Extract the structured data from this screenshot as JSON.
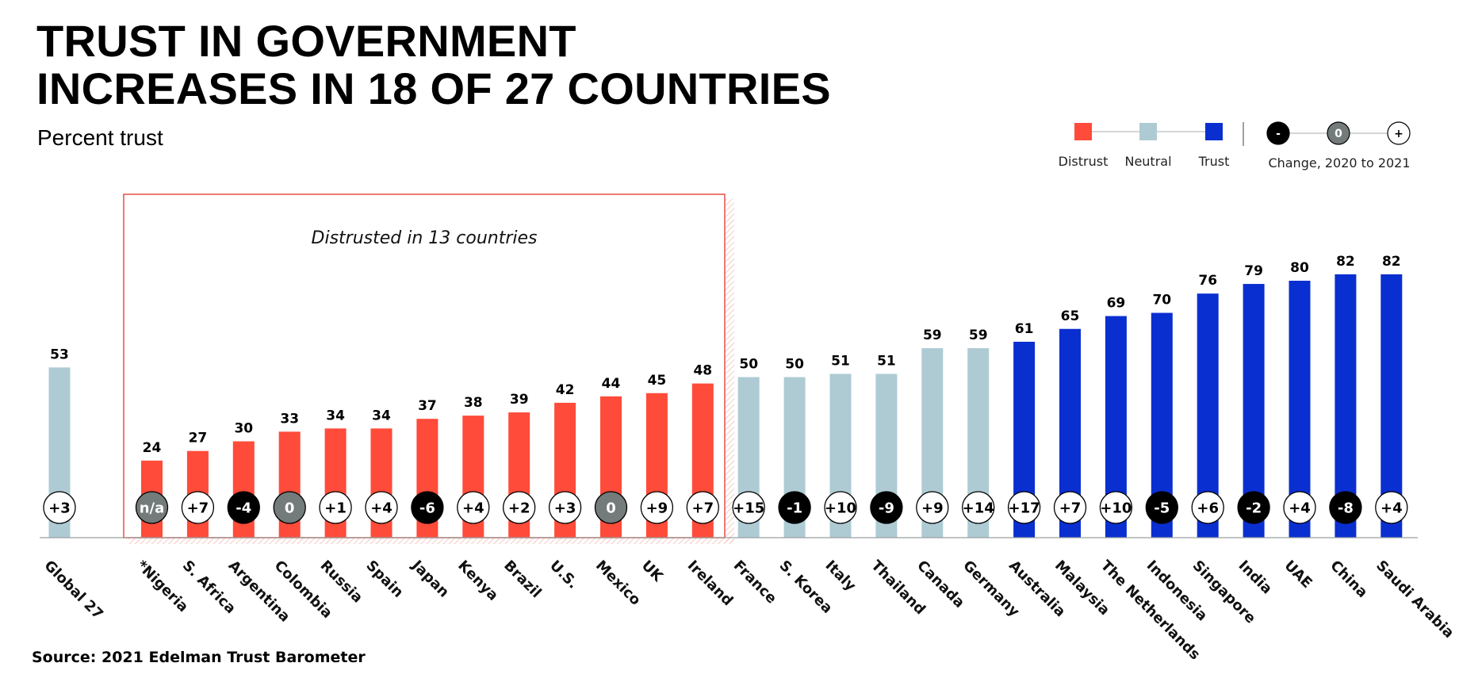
{
  "title_line1": "TRUST IN GOVERNMENT",
  "title_line2": "INCREASES IN 18 OF 27 COUNTRIES",
  "subtitle": "Percent trust",
  "source": "Source: 2021 Edelman Trust Barometer",
  "callout": "Distrusted in 13 countries",
  "legend": {
    "items": [
      {
        "label": "Distrust",
        "color": "#ff4b3a"
      },
      {
        "label": "Neutral",
        "color": "#aecbd4"
      },
      {
        "label": "Trust",
        "color": "#0a2fd0"
      }
    ],
    "change_label": "Change, 2020 to 2021",
    "change_symbols": [
      "-",
      "0",
      "+"
    ]
  },
  "colors": {
    "distrust": "#ff4b3a",
    "neutral": "#aecbd4",
    "trust": "#0a2fd0",
    "change_negative": "#000000",
    "change_zero": "#737b7b",
    "change_positive": "#ffffff",
    "callout_border": "#e85a50"
  },
  "chart_data": {
    "type": "bar",
    "ylim": [
      0,
      100
    ],
    "categories": [
      "Global 27",
      "*Nigeria",
      "S. Africa",
      "Argentina",
      "Colombia",
      "Russia",
      "Spain",
      "Japan",
      "Kenya",
      "Brazil",
      "U.S.",
      "Mexico",
      "UK",
      "Ireland",
      "France",
      "S. Korea",
      "Italy",
      "Thailand",
      "Canada",
      "Germany",
      "Australia",
      "Malaysia",
      "The Netherlands",
      "Indonesia",
      "Singapore",
      "India",
      "UAE",
      "China",
      "Saudi Arabia"
    ],
    "values": [
      53,
      24,
      27,
      30,
      33,
      34,
      34,
      37,
      38,
      39,
      42,
      44,
      45,
      48,
      50,
      50,
      51,
      51,
      59,
      59,
      61,
      65,
      69,
      70,
      76,
      79,
      80,
      82,
      82
    ],
    "bands": [
      "neutral",
      "distrust",
      "distrust",
      "distrust",
      "distrust",
      "distrust",
      "distrust",
      "distrust",
      "distrust",
      "distrust",
      "distrust",
      "distrust",
      "distrust",
      "distrust",
      "neutral",
      "neutral",
      "neutral",
      "neutral",
      "neutral",
      "neutral",
      "trust",
      "trust",
      "trust",
      "trust",
      "trust",
      "trust",
      "trust",
      "trust",
      "trust"
    ],
    "changes": [
      "+3",
      "n/a",
      "+7",
      "-4",
      "0",
      "+1",
      "+4",
      "-6",
      "+4",
      "+2",
      "+3",
      "0",
      "+9",
      "+7",
      "+15",
      "-1",
      "+10",
      "-9",
      "+9",
      "+14",
      "+17",
      "+7",
      "+10",
      "-5",
      "+6",
      "-2",
      "+4",
      "-8",
      "+4"
    ]
  }
}
